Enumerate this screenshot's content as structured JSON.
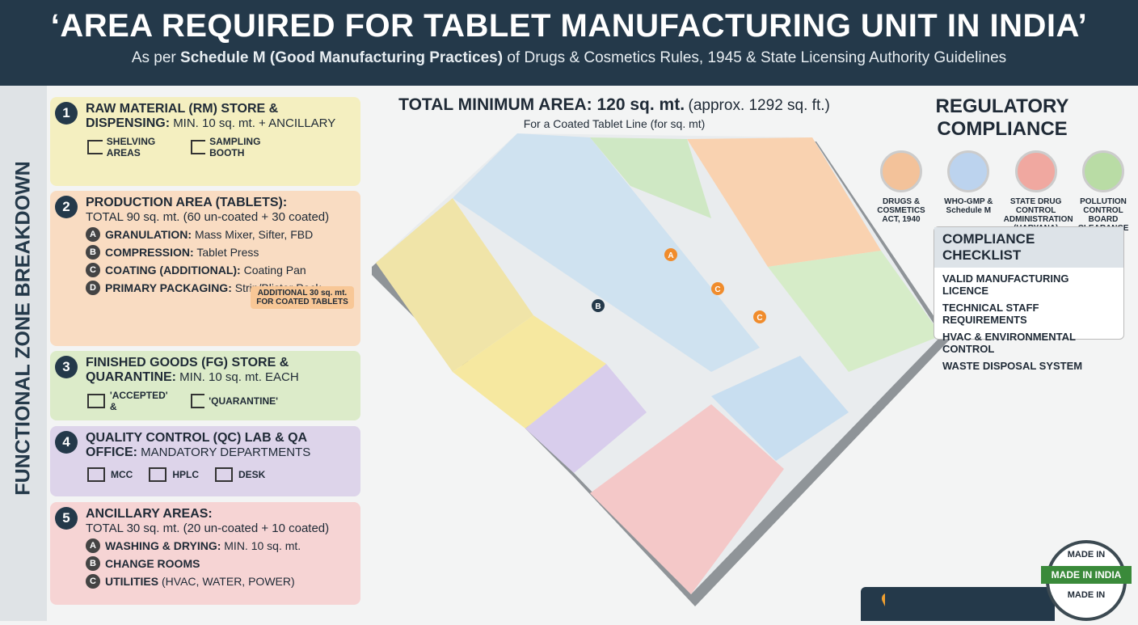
{
  "header": {
    "title": "‘AREA REQUIRED FOR TABLET MANUFACTURING UNIT IN INDIA’",
    "subtitle": {
      "prefix": "As per",
      "emphasis": "Schedule M (Good Manufacturing Practices)",
      "suffix": "of Drugs & Cosmetics Rules, 1945 & State Licensing Authority Guidelines"
    }
  },
  "sidebar": {
    "label": "FUNCTIONAL ZONE BREAKDOWN"
  },
  "zones": [
    {
      "number": "1",
      "heading": "RAW MATERIAL (RM) STORE & DISPENSING:",
      "detail": "MIN. 10 sq. mt. + ANCILLARY",
      "icons": [
        "SHELVING AREAS",
        "SAMPLING BOOTH"
      ]
    },
    {
      "number": "2",
      "heading": "PRODUCTION AREA (TABLETS):",
      "detail": "TOTAL 90 sq. mt. (60 un-coated + 30 coated)",
      "items": [
        {
          "letter": "A",
          "label": "GRANULATION:",
          "text": "Mass Mixer, Sifter, FBD"
        },
        {
          "letter": "B",
          "label": "COMPRESSION:",
          "text": "Tablet Press"
        },
        {
          "letter": "C",
          "label": "COATING (ADDITIONAL):",
          "text": "Coating Pan"
        },
        {
          "letter": "D",
          "label": "PRIMARY PACKAGING:",
          "text": "Strip/Blister Pack"
        }
      ],
      "note": "ADDITIONAL 30 sq. mt. FOR COATED TABLETS"
    },
    {
      "number": "3",
      "heading": "FINISHED GOODS (FG) STORE & QUARANTINE:",
      "detail": "MIN. 10 sq. mt. EACH",
      "icons": [
        "'ACCEPTED' &",
        "'QUARANTINE'"
      ]
    },
    {
      "number": "4",
      "heading": "QUALITY CONTROL (QC) LAB & QA OFFICE:",
      "detail": "MANDATORY DEPARTMENTS",
      "icons": [
        "MCC",
        "HPLC",
        "DESK"
      ]
    },
    {
      "number": "5",
      "heading": "ANCILLARY AREAS:",
      "detail": "TOTAL 30 sq. mt. (20 un-coated + 10 coated)",
      "items": [
        {
          "letter": "A",
          "label": "WASHING & DRYING:",
          "text": "MIN. 10 sq. mt."
        },
        {
          "letter": "B",
          "label": "CHANGE ROOMS"
        },
        {
          "letter": "C",
          "label": "UTILITIES",
          "text": "(HVAC, WATER, POWER)"
        }
      ]
    }
  ],
  "center": {
    "total": "TOTAL MINIMUM AREA: 120 sq. mt.",
    "approx": "(approx. 1292 sq. ft.)",
    "subtitle": "For a Coated Tablet Line (for sq. mt)",
    "markers": [
      "A",
      "B",
      "C",
      "C"
    ]
  },
  "compliance": {
    "title": "REGULATORY COMPLIANCE",
    "badges": [
      "DRUGS & COSMETICS ACT, 1940",
      "WHO-GMP & Schedule M",
      "STATE DRUG CONTROL ADMINISTRATION (HARYANA)",
      "POLLUTION CONTROL BOARD CLEARANCE"
    ],
    "checklist": {
      "title": "COMPLIANCE CHECKLIST",
      "items": [
        "VALID MANUFACTURING LICENCE",
        "TECHNICAL STAFF REQUIREMENTS",
        "HVAC & ENVIRONMENTAL CONTROL",
        "WASTE DISPOSAL SYSTEM"
      ]
    }
  },
  "stamp": {
    "top": "MADE IN",
    "center": "MADE IN INDIA",
    "bottom": "MADE IN"
  }
}
